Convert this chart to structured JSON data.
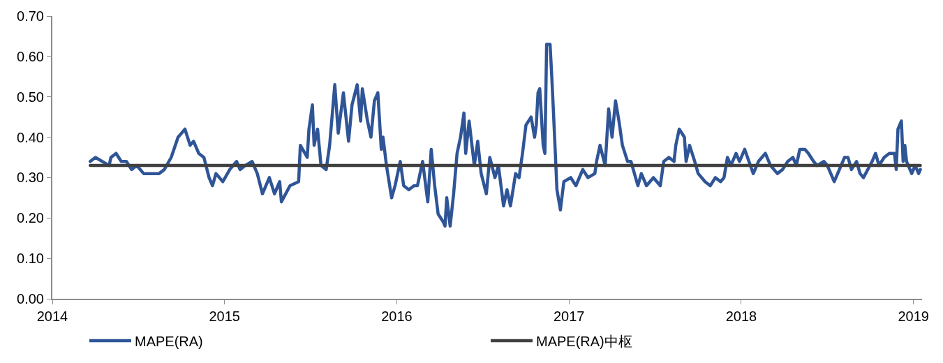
{
  "chart_data": {
    "type": "line",
    "xlim": [
      2014,
      2019.05
    ],
    "xticks": [
      2014,
      2015,
      2016,
      2017,
      2018,
      2019
    ],
    "ylim": [
      0,
      0.7
    ],
    "yticks": [
      {
        "value": 0,
        "label": "0.00"
      },
      {
        "value": 0.1,
        "label": "0.10"
      },
      {
        "value": 0.2,
        "label": "0.20"
      },
      {
        "value": 0.3,
        "label": "0.30"
      },
      {
        "value": 0.4,
        "label": "0.40"
      },
      {
        "value": 0.5,
        "label": "0.50"
      },
      {
        "value": 0.6,
        "label": "0.60"
      },
      {
        "value": 0.7,
        "label": "0.70"
      }
    ],
    "legend": "bottom",
    "marker": "none",
    "line_style": "solid",
    "series": [
      {
        "name": "MAPE(RA)",
        "color": "#2f5597",
        "x": [
          2014.22,
          2014.25,
          2014.33,
          2014.34,
          2014.37,
          2014.4,
          2014.43,
          2014.46,
          2014.49,
          2014.53,
          2014.58,
          2014.62,
          2014.65,
          2014.69,
          2014.73,
          2014.77,
          2014.8,
          2014.82,
          2014.85,
          2014.88,
          2014.91,
          2014.93,
          2014.95,
          2014.99,
          2015.03,
          2015.07,
          2015.09,
          2015.12,
          2015.16,
          2015.19,
          2015.22,
          2015.26,
          2015.29,
          2015.31,
          2015.32,
          2015.33,
          2015.38,
          2015.43,
          2015.44,
          2015.48,
          2015.49,
          2015.51,
          2015.52,
          2015.54,
          2015.56,
          2015.59,
          2015.61,
          2015.64,
          2015.66,
          2015.69,
          2015.72,
          2015.74,
          2015.77,
          2015.79,
          2015.8,
          2015.83,
          2015.85,
          2015.87,
          2015.89,
          2015.91,
          2015.92,
          2015.94,
          2015.97,
          2015.99,
          2016.02,
          2016.04,
          2016.07,
          2016.1,
          2016.12,
          2016.15,
          2016.18,
          2016.2,
          2016.22,
          2016.24,
          2016.27,
          2016.28,
          2016.29,
          2016.31,
          2016.33,
          2016.35,
          2016.37,
          2016.39,
          2016.4,
          2016.42,
          2016.45,
          2016.47,
          2016.49,
          2016.52,
          2016.54,
          2016.57,
          2016.59,
          2016.62,
          2016.64,
          2016.66,
          2016.69,
          2016.71,
          2016.73,
          2016.75,
          2016.78,
          2016.8,
          2016.81,
          2016.82,
          2016.83,
          2016.85,
          2016.86,
          2016.87,
          2016.89,
          2016.9,
          2016.91,
          2016.93,
          2016.95,
          2016.97,
          2017.01,
          2017.04,
          2017.08,
          2017.11,
          2017.15,
          2017.16,
          2017.18,
          2017.21,
          2017.23,
          2017.25,
          2017.27,
          2017.29,
          2017.31,
          2017.34,
          2017.36,
          2017.4,
          2017.42,
          2017.45,
          2017.49,
          2017.53,
          2017.55,
          2017.58,
          2017.61,
          2017.62,
          2017.64,
          2017.67,
          2017.68,
          2017.7,
          2017.73,
          2017.75,
          2017.79,
          2017.82,
          2017.85,
          2017.88,
          2017.9,
          2017.92,
          2017.94,
          2017.97,
          2017.99,
          2018.02,
          2018.07,
          2018.1,
          2018.14,
          2018.17,
          2018.21,
          2018.24,
          2018.27,
          2018.3,
          2018.32,
          2018.34,
          2018.37,
          2018.39,
          2018.42,
          2018.44,
          2018.48,
          2018.5,
          2018.54,
          2018.56,
          2018.6,
          2018.62,
          2018.64,
          2018.67,
          2018.69,
          2018.71,
          2018.76,
          2018.78,
          2018.8,
          2018.83,
          2018.86,
          2018.89,
          2018.9,
          2018.91,
          2018.93,
          2018.94,
          2018.95,
          2018.96,
          2018.99,
          2019.01,
          2019.03,
          2019.04
        ],
        "values": [
          0.34,
          0.35,
          0.33,
          0.35,
          0.36,
          0.34,
          0.34,
          0.32,
          0.33,
          0.31,
          0.31,
          0.31,
          0.32,
          0.35,
          0.4,
          0.42,
          0.38,
          0.39,
          0.36,
          0.35,
          0.3,
          0.28,
          0.31,
          0.29,
          0.32,
          0.34,
          0.32,
          0.33,
          0.34,
          0.31,
          0.26,
          0.3,
          0.26,
          0.28,
          0.29,
          0.24,
          0.28,
          0.29,
          0.38,
          0.35,
          0.42,
          0.48,
          0.38,
          0.42,
          0.33,
          0.32,
          0.38,
          0.53,
          0.41,
          0.51,
          0.39,
          0.48,
          0.53,
          0.44,
          0.52,
          0.44,
          0.4,
          0.49,
          0.51,
          0.37,
          0.4,
          0.33,
          0.25,
          0.28,
          0.34,
          0.28,
          0.27,
          0.28,
          0.28,
          0.34,
          0.24,
          0.37,
          0.28,
          0.21,
          0.19,
          0.18,
          0.25,
          0.18,
          0.26,
          0.36,
          0.4,
          0.46,
          0.36,
          0.44,
          0.33,
          0.39,
          0.31,
          0.26,
          0.35,
          0.3,
          0.33,
          0.23,
          0.27,
          0.23,
          0.31,
          0.3,
          0.36,
          0.43,
          0.45,
          0.4,
          0.43,
          0.51,
          0.52,
          0.38,
          0.36,
          0.63,
          0.63,
          0.55,
          0.46,
          0.27,
          0.22,
          0.29,
          0.3,
          0.28,
          0.32,
          0.3,
          0.31,
          0.34,
          0.38,
          0.33,
          0.47,
          0.4,
          0.49,
          0.44,
          0.38,
          0.34,
          0.34,
          0.28,
          0.31,
          0.28,
          0.3,
          0.28,
          0.34,
          0.35,
          0.34,
          0.38,
          0.42,
          0.4,
          0.34,
          0.38,
          0.34,
          0.31,
          0.29,
          0.28,
          0.3,
          0.29,
          0.3,
          0.35,
          0.33,
          0.36,
          0.34,
          0.37,
          0.31,
          0.34,
          0.36,
          0.33,
          0.31,
          0.32,
          0.34,
          0.35,
          0.33,
          0.37,
          0.37,
          0.36,
          0.34,
          0.33,
          0.34,
          0.33,
          0.29,
          0.31,
          0.35,
          0.35,
          0.32,
          0.34,
          0.31,
          0.3,
          0.34,
          0.36,
          0.33,
          0.35,
          0.36,
          0.36,
          0.32,
          0.42,
          0.44,
          0.34,
          0.38,
          0.34,
          0.31,
          0.33,
          0.31,
          0.32
        ]
      },
      {
        "name": "MAPE(RA)中枢",
        "color": "#404040",
        "x": [
          2014.22,
          2019.04
        ],
        "values": [
          0.33,
          0.33
        ]
      }
    ]
  }
}
